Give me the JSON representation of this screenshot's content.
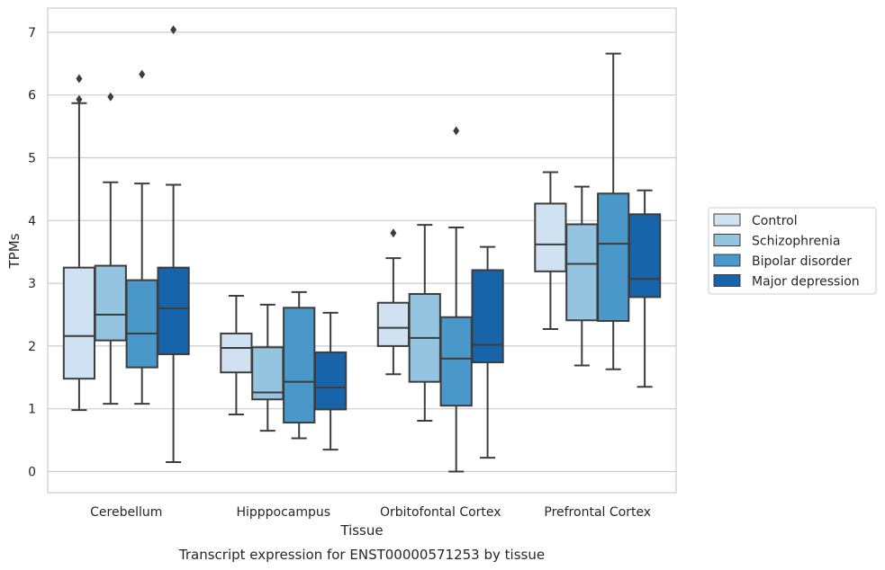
{
  "chart_data": {
    "type": "box",
    "xlabel": "Tissue",
    "ylabel": "TPMs",
    "caption": "Transcript expression for ENST00000571253 by tissue",
    "ylim": [
      -0.35,
      7.4
    ],
    "yticks": [
      0,
      1,
      2,
      3,
      4,
      5,
      6,
      7
    ],
    "grid": "horizontal",
    "legend_position": "right",
    "categories": [
      "Cerebellum",
      "Hipppocampus",
      "Orbitofontal Cortex",
      "Prefrontal Cortex"
    ],
    "series": [
      {
        "name": "Control",
        "color": "#d0e1f2",
        "boxes": [
          {
            "whislo": 0.98,
            "q1": 1.48,
            "med": 2.16,
            "q3": 3.25,
            "whishi": 5.87,
            "fliers": [
              5.93,
              6.26
            ]
          },
          {
            "whislo": 0.91,
            "q1": 1.58,
            "med": 1.97,
            "q3": 2.2,
            "whishi": 2.8,
            "fliers": []
          },
          {
            "whislo": 1.55,
            "q1": 2.0,
            "med": 2.29,
            "q3": 2.69,
            "whishi": 3.4,
            "fliers": [
              3.8
            ]
          },
          {
            "whislo": 2.27,
            "q1": 3.19,
            "med": 3.62,
            "q3": 4.27,
            "whishi": 4.77,
            "fliers": []
          }
        ]
      },
      {
        "name": "Schizophrenia",
        "color": "#94c4df",
        "boxes": [
          {
            "whislo": 1.08,
            "q1": 2.09,
            "med": 2.5,
            "q3": 3.28,
            "whishi": 4.61,
            "fliers": [
              5.97
            ]
          },
          {
            "whislo": 0.65,
            "q1": 1.15,
            "med": 1.26,
            "q3": 1.98,
            "whishi": 2.66,
            "fliers": []
          },
          {
            "whislo": 0.81,
            "q1": 1.43,
            "med": 2.13,
            "q3": 2.83,
            "whishi": 3.93,
            "fliers": []
          },
          {
            "whislo": 1.69,
            "q1": 2.41,
            "med": 3.31,
            "q3": 3.94,
            "whishi": 4.54,
            "fliers": []
          }
        ]
      },
      {
        "name": "Bipolar disorder",
        "color": "#4a98c9",
        "boxes": [
          {
            "whislo": 1.08,
            "q1": 1.66,
            "med": 2.2,
            "q3": 3.05,
            "whishi": 4.59,
            "fliers": [
              6.33
            ]
          },
          {
            "whislo": 0.53,
            "q1": 0.78,
            "med": 1.43,
            "q3": 2.61,
            "whishi": 2.86,
            "fliers": []
          },
          {
            "whislo": 0.0,
            "q1": 1.05,
            "med": 1.8,
            "q3": 2.46,
            "whishi": 3.89,
            "fliers": [
              5.43
            ]
          },
          {
            "whislo": 1.63,
            "q1": 2.4,
            "med": 3.63,
            "q3": 4.43,
            "whishi": 6.66,
            "fliers": []
          }
        ]
      },
      {
        "name": "Major depression",
        "color": "#1764ab",
        "boxes": [
          {
            "whislo": 0.15,
            "q1": 1.87,
            "med": 2.6,
            "q3": 3.25,
            "whishi": 4.57,
            "fliers": [
              7.04
            ]
          },
          {
            "whislo": 0.35,
            "q1": 0.99,
            "med": 1.34,
            "q3": 1.9,
            "whishi": 2.53,
            "fliers": []
          },
          {
            "whislo": 0.22,
            "q1": 1.74,
            "med": 2.02,
            "q3": 3.21,
            "whishi": 3.58,
            "fliers": []
          },
          {
            "whislo": 1.35,
            "q1": 2.78,
            "med": 3.07,
            "q3": 4.1,
            "whishi": 4.48,
            "fliers": []
          }
        ]
      }
    ]
  }
}
